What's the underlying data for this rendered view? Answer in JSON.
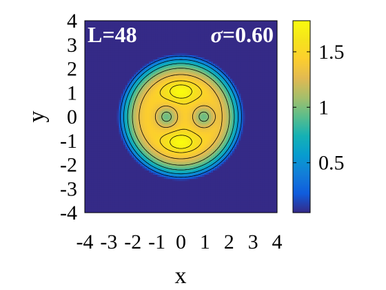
{
  "chart_data": {
    "type": "heatmap",
    "title": "",
    "annotations": {
      "left": "L=48",
      "right_symbol": "σ",
      "right_value": "=0.60"
    },
    "xlabel": "x",
    "ylabel": "y",
    "xlim": [
      -4,
      4
    ],
    "ylim": [
      -4,
      4
    ],
    "x_ticks": [
      "-4",
      "-3",
      "-2",
      "-1",
      "0",
      "1",
      "2",
      "3",
      "4"
    ],
    "y_ticks": [
      "4",
      "3",
      "2",
      "1",
      "0",
      "-1",
      "-2",
      "-3",
      "-4"
    ],
    "x_tick_values": [
      -4,
      -3,
      -2,
      -1,
      0,
      1,
      2,
      3,
      4
    ],
    "y_tick_values": [
      4,
      3,
      2,
      1,
      0,
      -1,
      -2,
      -3,
      -4
    ],
    "colorbar": {
      "range": [
        0.05,
        1.78
      ],
      "tick_labels": [
        "1.5",
        "1",
        "0.5"
      ],
      "tick_values": [
        1.5,
        1.0,
        0.5
      ],
      "colormap": "parula"
    },
    "contour_levels": [
      0.3,
      0.55,
      0.8,
      1.05,
      1.3,
      1.5,
      1.65
    ],
    "field": {
      "disk_radius": 2.65,
      "plateau": 1.45,
      "holes": [
        {
          "x": -0.6,
          "y": 0.0,
          "min": 0.95
        },
        {
          "x": 0.95,
          "y": 0.0,
          "min": 0.95
        }
      ],
      "peaks": [
        {
          "x": 0.0,
          "y": 1.05,
          "max": 1.78
        },
        {
          "x": 0.0,
          "y": -1.05,
          "max": 1.78
        }
      ]
    },
    "grid": false
  }
}
